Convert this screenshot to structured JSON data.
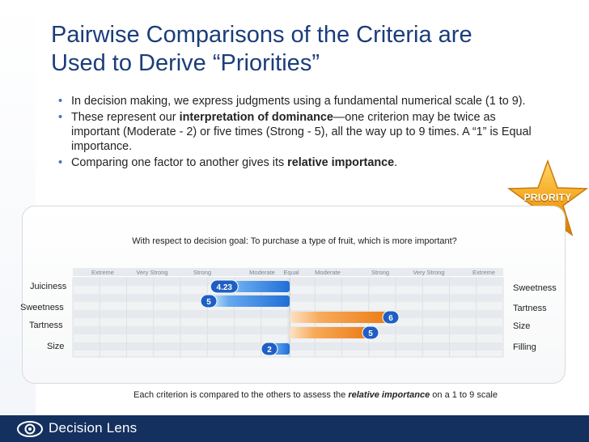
{
  "title": {
    "line1": "Pairwise Comparisons of the Criteria are",
    "line2": "Used to Derive “Priorities”"
  },
  "bullets": [
    {
      "text": "In decision making, we express judgments using a fundamental numerical scale (1 to 9)."
    },
    {
      "pre": "These represent our ",
      "bold": "interpretation of dominance",
      "post": "—one criterion may be twice as important (Moderate - 2) or five times (Strong - 5), all the way up to 9 times. A “1” is Equal importance."
    },
    {
      "pre": "Comparing one factor to another gives its ",
      "bold": "relative importance",
      "post": "."
    }
  ],
  "badge": {
    "label": "PRIORITY"
  },
  "question": "With respect to decision goal: To purchase a type of fruit, which is more important?",
  "chart_data": {
    "type": "bar",
    "title": "With respect to decision goal: To purchase a type of fruit, which is more important?",
    "scale_labels": [
      "Extreme",
      "Very Strong",
      "Strong",
      "Moderate",
      "Equal",
      "Moderate",
      "Strong",
      "Very Strong",
      "Extreme"
    ],
    "comparisons": [
      {
        "left": "Juiciness",
        "right": "Sweetness",
        "favors": "left",
        "value": 4.23,
        "label": "4.23"
      },
      {
        "left": "Sweetness",
        "right": "Tartness",
        "favors": "left",
        "value": 5,
        "label": "5"
      },
      {
        "left": "Sweetness",
        "right": "Size",
        "favors": "right",
        "value": 6,
        "label": "6"
      },
      {
        "left": "Tartness",
        "right": "Size",
        "favors": "right",
        "value": 5,
        "label": "5"
      },
      {
        "left": "Size",
        "right": "Filling",
        "favors": "left",
        "value": 2,
        "label": "2"
      }
    ],
    "left_labels": [
      "Juiciness",
      "Sweetness",
      "Tartness",
      "Size"
    ],
    "right_labels": [
      "Sweetness",
      "Tartness",
      "Size",
      "Filling"
    ],
    "colors": {
      "left_bar": "#2f7fe0",
      "right_bar": "#f08a1e",
      "label_bubble": "#1f5fc4"
    }
  },
  "note": {
    "pre": "Each criterion is compared to the others to assess the ",
    "italic": "relative importance",
    "post": " on a 1 to 9 scale"
  },
  "footer": {
    "brand": "Decision Lens"
  }
}
